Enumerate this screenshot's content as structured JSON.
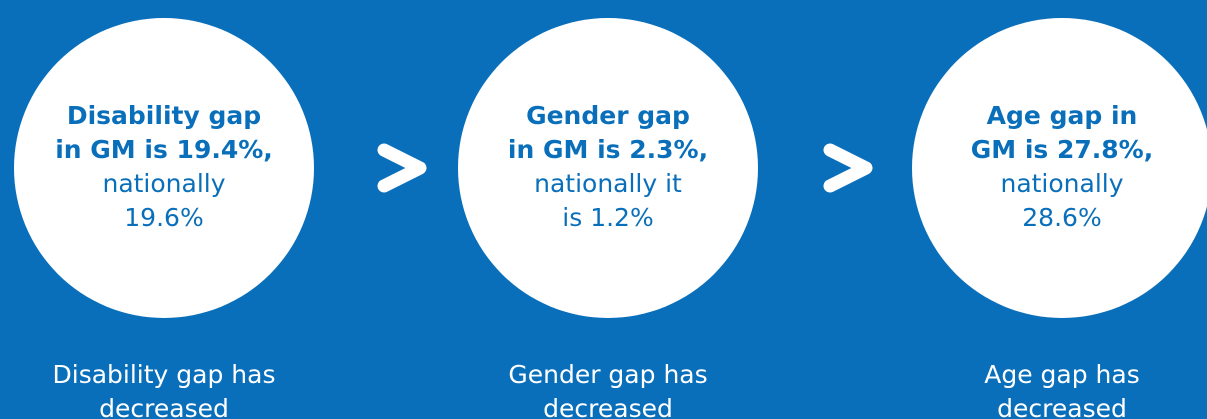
{
  "items": [
    {
      "bold": [
        "Disability gap",
        "in GM is 19.4%,"
      ],
      "normal": [
        "nationally",
        "19.6%"
      ],
      "caption": [
        "Disability gap has",
        "decreased"
      ]
    },
    {
      "bold": [
        "Gender gap",
        "in GM is 2.3%,"
      ],
      "normal": [
        "nationally it",
        "is 1.2%"
      ],
      "caption": [
        "Gender gap has",
        "decreased"
      ]
    },
    {
      "bold": [
        "Age gap in",
        "GM is 27.8%,"
      ],
      "normal": [
        "nationally",
        "28.6%"
      ],
      "caption": [
        "Age gap has",
        "decreased"
      ]
    }
  ]
}
